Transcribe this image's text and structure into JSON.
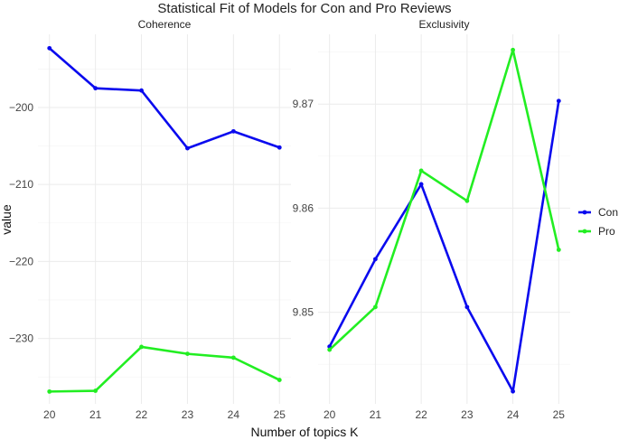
{
  "title": "Statistical Fit of Models for Con and Pro Reviews",
  "xlabel": "Number of topics K",
  "ylabel": "value",
  "colors": {
    "Con": "#0a0aee",
    "Pro": "#22ee22"
  },
  "chart_data": [
    {
      "type": "line",
      "panel": "Coherence",
      "x": [
        20,
        21,
        22,
        23,
        24,
        25
      ],
      "series": [
        {
          "name": "Con",
          "values": [
            -192.3,
            -197.5,
            -197.8,
            -205.3,
            -203.1,
            -205.2
          ]
        },
        {
          "name": "Pro",
          "values": [
            -236.9,
            -236.8,
            -231.1,
            -232.0,
            -232.5,
            -235.4
          ]
        }
      ],
      "yticks": [
        -200,
        -210,
        -220,
        -230
      ],
      "ylim": [
        -238.5,
        -190.5
      ],
      "grid": true
    },
    {
      "type": "line",
      "panel": "Exclusivity",
      "x": [
        20,
        21,
        22,
        23,
        24,
        25
      ],
      "series": [
        {
          "name": "Con",
          "values": [
            9.8467,
            9.8551,
            9.8623,
            9.8505,
            9.8424,
            9.8703
          ]
        },
        {
          "name": "Pro",
          "values": [
            9.8464,
            9.8505,
            9.8636,
            9.8607,
            9.8752,
            9.856
          ]
        }
      ],
      "yticks": [
        9.85,
        9.86,
        9.87
      ],
      "ylim": [
        9.8412,
        9.8767
      ],
      "grid": true
    }
  ],
  "legend": {
    "position": "right",
    "items": [
      "Con",
      "Pro"
    ]
  }
}
